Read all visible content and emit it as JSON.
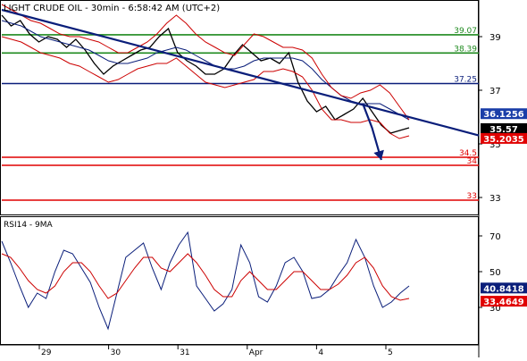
{
  "chart_data": [
    {
      "type": "line",
      "title": "LIGHT CRUDE OIL - 30min - 6:58:42 AM (UTC+2)",
      "x_labels": [
        "29",
        "30",
        "31",
        "Apr",
        "4",
        "5"
      ],
      "ylim": [
        32.4,
        40.3
      ],
      "y_ticks": [
        33,
        35,
        37,
        39
      ],
      "series": [
        {
          "color": "#000000",
          "values": [
            39.8,
            39.4,
            39.6,
            39.1,
            38.8,
            39.0,
            38.9,
            38.6,
            38.9,
            38.5,
            38.0,
            37.6,
            37.9,
            38.1,
            38.3,
            38.5,
            38.6,
            39.0,
            39.3,
            38.4,
            38.1,
            37.9,
            37.6,
            37.6,
            37.8,
            38.3,
            38.7,
            38.4,
            38.1,
            38.2,
            38.0,
            38.4,
            37.3,
            36.6,
            36.2,
            36.4,
            35.9,
            36.1,
            36.3,
            36.7,
            36.2,
            35.7,
            35.4,
            35.5,
            35.6
          ]
        },
        {
          "color": "#0a1e7a",
          "values": [
            39.6,
            39.5,
            39.4,
            39.2,
            39.0,
            38.9,
            38.8,
            38.7,
            38.6,
            38.5,
            38.3,
            38.1,
            38.0,
            38.0,
            38.1,
            38.2,
            38.4,
            38.5,
            38.6,
            38.5,
            38.3,
            38.1,
            37.9,
            37.8,
            37.8,
            37.9,
            38.1,
            38.2,
            38.2,
            38.2,
            38.2,
            38.1,
            37.8,
            37.4,
            37.1,
            36.8,
            36.6,
            36.5,
            36.5,
            36.5,
            36.3,
            36.1,
            35.9
          ]
        },
        {
          "color": "#cc0000",
          "values": [
            40.2,
            40.0,
            39.8,
            39.6,
            39.5,
            39.3,
            39.1,
            39.0,
            39.0,
            38.9,
            38.8,
            38.6,
            38.4,
            38.4,
            38.6,
            38.8,
            39.1,
            39.5,
            39.8,
            39.5,
            39.1,
            38.8,
            38.6,
            38.4,
            38.3,
            38.7,
            39.1,
            39.0,
            38.8,
            38.6,
            38.6,
            38.5,
            38.2,
            37.6,
            37.1,
            36.8,
            36.7,
            36.9,
            37.0,
            37.2,
            36.9,
            36.4,
            35.9
          ]
        },
        {
          "color": "#cc0000",
          "values": [
            39.0,
            38.9,
            38.8,
            38.6,
            38.4,
            38.3,
            38.2,
            38.0,
            37.9,
            37.7,
            37.5,
            37.3,
            37.4,
            37.6,
            37.8,
            37.9,
            38.0,
            38.0,
            38.2,
            37.9,
            37.6,
            37.3,
            37.2,
            37.1,
            37.2,
            37.3,
            37.4,
            37.7,
            37.7,
            37.8,
            37.7,
            37.5,
            37.0,
            36.3,
            35.9,
            35.9,
            35.8,
            35.8,
            35.9,
            35.8,
            35.4,
            35.2,
            35.3
          ]
        }
      ],
      "trendlines": [
        {
          "color": "#0a1e7a",
          "points": [
            [
              0,
              40.0
            ],
            [
              44,
              36.0
            ]
          ]
        },
        {
          "color": "#0a1e7a",
          "arrow": true,
          "points": [
            [
              39,
              36.5
            ],
            [
              40,
              35.6
            ],
            [
              41,
              34.4
            ]
          ]
        }
      ],
      "levels": [
        {
          "value": 39.07,
          "label": "39.07",
          "color": "#1e8a1e"
        },
        {
          "value": 38.39,
          "label": "38.39",
          "color": "#1e8a1e"
        },
        {
          "value": 37.25,
          "label": "37.25",
          "color": "#0a1e7a"
        },
        {
          "value": 34.5,
          "label": "34.5",
          "color": "#e00000"
        },
        {
          "value": 34.2,
          "label": "34",
          "color": "#e00000"
        },
        {
          "value": 32.9,
          "label": "33",
          "color": "#e00000"
        }
      ],
      "price_badges": [
        {
          "value": 36.1256,
          "label": "36.1256",
          "bg": "#1a3ea8",
          "fg": "#ffffff"
        },
        {
          "value": 35.57,
          "label": "35.57",
          "bg": "#000000",
          "fg": "#ffffff"
        },
        {
          "value": 35.2035,
          "label": "35.2035",
          "bg": "#e00000",
          "fg": "#ffffff"
        }
      ]
    },
    {
      "type": "line",
      "title": "RSI14 - 9MA",
      "ylim": [
        10,
        80
      ],
      "y_ticks": [
        30,
        50,
        70
      ],
      "series": [
        {
          "color": "#0a1e7a",
          "values": [
            67,
            55,
            42,
            30,
            38,
            35,
            50,
            62,
            60,
            52,
            44,
            30,
            18,
            38,
            58,
            62,
            66,
            52,
            40,
            55,
            65,
            72,
            42,
            35,
            28,
            32,
            40,
            65,
            55,
            36,
            33,
            42,
            55,
            58,
            50,
            35,
            36,
            40,
            48,
            55,
            68,
            58,
            42,
            30,
            33,
            38,
            42
          ]
        },
        {
          "color": "#cc0000",
          "values": [
            60,
            58,
            52,
            45,
            40,
            38,
            42,
            50,
            55,
            55,
            50,
            42,
            35,
            38,
            45,
            52,
            58,
            58,
            52,
            50,
            55,
            60,
            55,
            48,
            40,
            36,
            36,
            45,
            50,
            45,
            40,
            40,
            45,
            50,
            50,
            45,
            40,
            40,
            43,
            48,
            55,
            58,
            52,
            42,
            36,
            34,
            35
          ]
        }
      ],
      "price_badges": [
        {
          "value": 40.8418,
          "label": "40.8418",
          "bg": "#0a1e7a",
          "fg": "#ffffff"
        },
        {
          "value": 33.4649,
          "label": "33.4649",
          "bg": "#e00000",
          "fg": "#ffffff"
        }
      ]
    }
  ]
}
